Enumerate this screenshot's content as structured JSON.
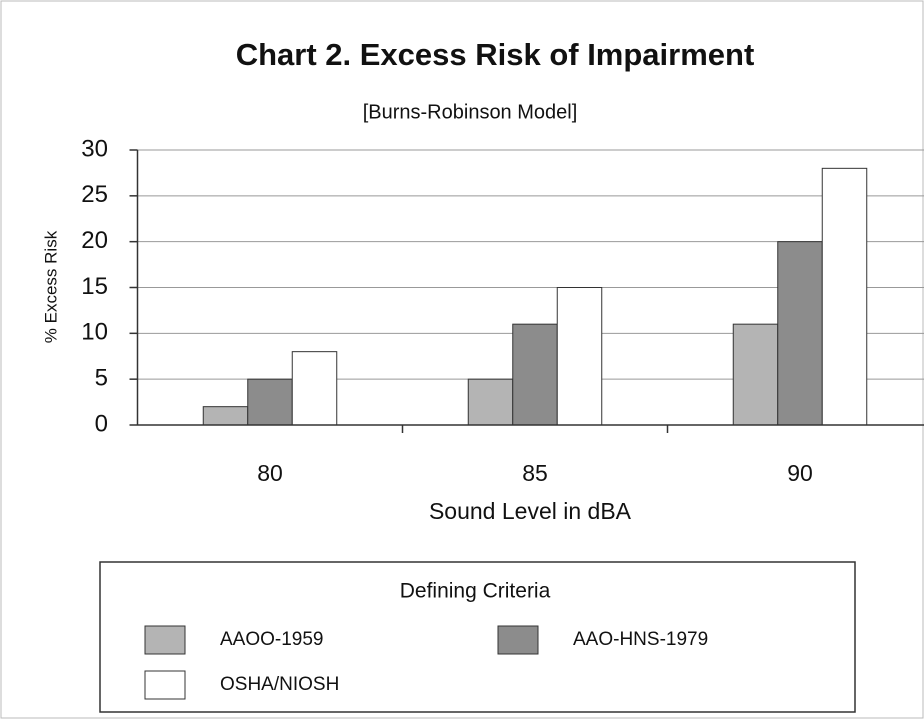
{
  "chart_data": {
    "type": "bar",
    "title": "Chart 2.  Excess Risk of Impairment",
    "subtitle": "[Burns-Robinson Model]",
    "y_label": "% Excess Risk",
    "x_label": "Sound Level in dBA",
    "categories": [
      "80",
      "85",
      "90"
    ],
    "series": [
      {
        "name": "AAOO-1959",
        "color": "#b4b4b4",
        "values": [
          2,
          5,
          11
        ]
      },
      {
        "name": "AAO-HNS-1979",
        "color": "#8c8c8c",
        "values": [
          5,
          11,
          20
        ]
      },
      {
        "name": "OSHA/NIOSH",
        "color": "#ffffff",
        "values": [
          8,
          15,
          28
        ]
      }
    ],
    "ylim": [
      0,
      30
    ],
    "yticks": [
      0,
      5,
      10,
      15,
      20,
      25,
      30
    ],
    "grid": true,
    "legend_title": "Defining Criteria",
    "legend_position": "bottom"
  }
}
